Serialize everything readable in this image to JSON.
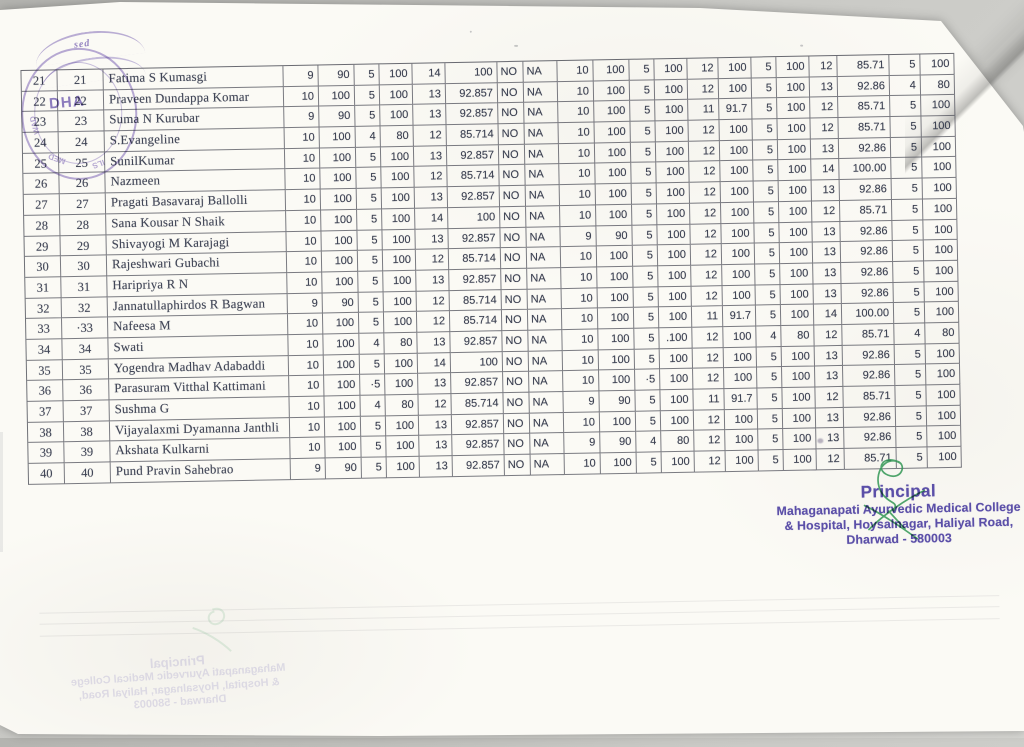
{
  "table": {
    "rows": [
      {
        "sl_no": "21",
        "sl_no_2": "21",
        "name": "Fatima S Kumasgi",
        "values": [
          "9",
          "90",
          "5",
          "100",
          "14",
          "100",
          "NO",
          "NA",
          "10",
          "100",
          "5",
          "100",
          "12",
          "100",
          "5",
          "100",
          "12",
          "85.71",
          "5",
          "100"
        ]
      },
      {
        "sl_no": "22",
        "sl_no_2": "22",
        "name": "Praveen Dundappa Komar",
        "values": [
          "10",
          "100",
          "5",
          "100",
          "13",
          "92.857",
          "NO",
          "NA",
          "10",
          "100",
          "5",
          "100",
          "12",
          "100",
          "5",
          "100",
          "13",
          "92.86",
          "4",
          "80"
        ]
      },
      {
        "sl_no": "23",
        "sl_no_2": "23",
        "name": "Suma N Kurubar",
        "values": [
          "9",
          "90",
          "5",
          "100",
          "13",
          "92.857",
          "NO",
          "NA",
          "10",
          "100",
          "5",
          "100",
          "11",
          "91.7",
          "5",
          "100",
          "12",
          "85.71",
          "5",
          "100"
        ]
      },
      {
        "sl_no": "24",
        "sl_no_2": "24",
        "name": "S.Evangeline",
        "values": [
          "10",
          "100",
          "4",
          "80",
          "12",
          "85.714",
          "NO",
          "NA",
          "10",
          "100",
          "5",
          "100",
          "12",
          "100",
          "5",
          "100",
          "12",
          "85.71",
          "5",
          "100"
        ]
      },
      {
        "sl_no": "25",
        "sl_no_2": "25",
        "name": "SunilKumar",
        "values": [
          "10",
          "100",
          "5",
          "100",
          "13",
          "92.857",
          "NO",
          "NA",
          "10",
          "100",
          "5",
          "100",
          "12",
          "100",
          "5",
          "100",
          "13",
          "92.86",
          "5",
          "100"
        ]
      },
      {
        "sl_no": "26",
        "sl_no_2": "26",
        "name": "Nazmeen",
        "values": [
          "10",
          "100",
          "5",
          "100",
          "12",
          "85.714",
          "NO",
          "NA",
          "10",
          "100",
          "5",
          "100",
          "12",
          "100",
          "5",
          "100",
          "14",
          "100.00",
          "5",
          "100"
        ]
      },
      {
        "sl_no": "27",
        "sl_no_2": "27",
        "name": "Pragati Basavaraj Ballolli",
        "values": [
          "10",
          "100",
          "5",
          "100",
          "13",
          "92.857",
          "NO",
          "NA",
          "10",
          "100",
          "5",
          "100",
          "12",
          "100",
          "5",
          "100",
          "13",
          "92.86",
          "5",
          "100"
        ]
      },
      {
        "sl_no": "28",
        "sl_no_2": "28",
        "name": "Sana Kousar N Shaik",
        "values": [
          "10",
          "100",
          "5",
          "100",
          "14",
          "100",
          "NO",
          "NA",
          "10",
          "100",
          "5",
          "100",
          "12",
          "100",
          "5",
          "100",
          "12",
          "85.71",
          "5",
          "100"
        ]
      },
      {
        "sl_no": "29",
        "sl_no_2": "29",
        "name": "Shivayogi M Karajagi",
        "values": [
          "10",
          "100",
          "5",
          "100",
          "13",
          "92.857",
          "NO",
          "NA",
          "9",
          "90",
          "5",
          "100",
          "12",
          "100",
          "5",
          "100",
          "13",
          "92.86",
          "5",
          "100"
        ]
      },
      {
        "sl_no": "30",
        "sl_no_2": "30",
        "name": "Rajeshwari Gubachi",
        "values": [
          "10",
          "100",
          "5",
          "100",
          "12",
          "85.714",
          "NO",
          "NA",
          "10",
          "100",
          "5",
          "100",
          "12",
          "100",
          "5",
          "100",
          "13",
          "92.86",
          "5",
          "100"
        ]
      },
      {
        "sl_no": "31",
        "sl_no_2": "31",
        "name": "Haripriya R N",
        "values": [
          "10",
          "100",
          "5",
          "100",
          "13",
          "92.857",
          "NO",
          "NA",
          "10",
          "100",
          "5",
          "100",
          "12",
          "100",
          "5",
          "100",
          "13",
          "92.86",
          "5",
          "100"
        ]
      },
      {
        "sl_no": "32",
        "sl_no_2": "32",
        "name": "Jannatullaphirdos R Bagwan",
        "values": [
          "9",
          "90",
          "5",
          "100",
          "12",
          "85.714",
          "NO",
          "NA",
          "10",
          "100",
          "5",
          "100",
          "12",
          "100",
          "5",
          "100",
          "13",
          "92.86",
          "5",
          "100"
        ]
      },
      {
        "sl_no": "33",
        "sl_no_2": "·33",
        "name": "Nafeesa M",
        "values": [
          "10",
          "100",
          "5",
          "100",
          "12",
          "85.714",
          "NO",
          "NA",
          "10",
          "100",
          "5",
          "100",
          "11",
          "91.7",
          "5",
          "100",
          "14",
          "100.00",
          "5",
          "100"
        ]
      },
      {
        "sl_no": "34",
        "sl_no_2": "34",
        "name": "Swati",
        "values": [
          "10",
          "100",
          "4",
          "80",
          "13",
          "92.857",
          "NO",
          "NA",
          "10",
          "100",
          "5",
          ".100",
          "12",
          "100",
          "4",
          "80",
          "12",
          "85.71",
          "4",
          "80"
        ]
      },
      {
        "sl_no": "35",
        "sl_no_2": "35",
        "name": "Yogendra Madhav Adabaddi",
        "values": [
          "10",
          "100",
          "5",
          "100",
          "14",
          "100",
          "NO",
          "NA",
          "10",
          "100",
          "5",
          "100",
          "12",
          "100",
          "5",
          "100",
          "13",
          "92.86",
          "5",
          "100"
        ]
      },
      {
        "sl_no": "36",
        "sl_no_2": "36",
        "name": "Parasuram Vitthal Kattimani",
        "values": [
          "10",
          "100",
          "·5",
          "100",
          "13",
          "92.857",
          "NO",
          "NA",
          "10",
          "100",
          "·5",
          "100",
          "12",
          "100",
          "5",
          "100",
          "13",
          "92.86",
          "5",
          "100"
        ]
      },
      {
        "sl_no": "37",
        "sl_no_2": "37",
        "name": "Sushma G",
        "values": [
          "10",
          "100",
          "4",
          "80",
          "12",
          "85.714",
          "NO",
          "NA",
          "9",
          "90",
          "5",
          "100",
          "11",
          "91.7",
          "5",
          "100",
          "12",
          "85.71",
          "5",
          "100"
        ]
      },
      {
        "sl_no": "38",
        "sl_no_2": "38",
        "name": "Vijayalaxmi Dyamanna Janthli",
        "values": [
          "10",
          "100",
          "5",
          "100",
          "13",
          "92.857",
          "NO",
          "NA",
          "10",
          "100",
          "5",
          "100",
          "12",
          "100",
          "5",
          "100",
          "13",
          "92.86",
          "5",
          "100"
        ]
      },
      {
        "sl_no": "39",
        "sl_no_2": "39",
        "name": "Akshata Kulkarni",
        "values": [
          "10",
          "100",
          "5",
          "100",
          "13",
          "92.857",
          "NO",
          "NA",
          "9",
          "90",
          "4",
          "80",
          "12",
          "100",
          "5",
          "100",
          "13",
          "92.86",
          "5",
          "100"
        ]
      },
      {
        "sl_no": "40",
        "sl_no_2": "40",
        "name": "Pund Pravin Sahebrao",
        "values": [
          "9",
          "90",
          "5",
          "100",
          "13",
          "92.857",
          "NO",
          "NA",
          "10",
          "100",
          "5",
          "100",
          "12",
          "100",
          "5",
          "100",
          "12",
          "85.71",
          "5",
          "100"
        ]
      }
    ]
  },
  "signature_block": {
    "designation": "Principal",
    "org_line1": "Mahaganapati Ayurvedic Medical College",
    "org_line2": "& Hospital, Hoysalnagar, Haliyal Road,",
    "org_line3": "Dharwad - 580003"
  },
  "seal": {
    "center_text": "DHA",
    "top_fragment": "sed",
    "arc_text1": "MED",
    "arc_text2": "ILS",
    "arc_text3": "WAD"
  },
  "colors": {
    "stamp_purple": "#5b4fa8",
    "seal_purple": "#6c54ac",
    "signature_green": "#2f9552",
    "ink": "#3c4152"
  }
}
